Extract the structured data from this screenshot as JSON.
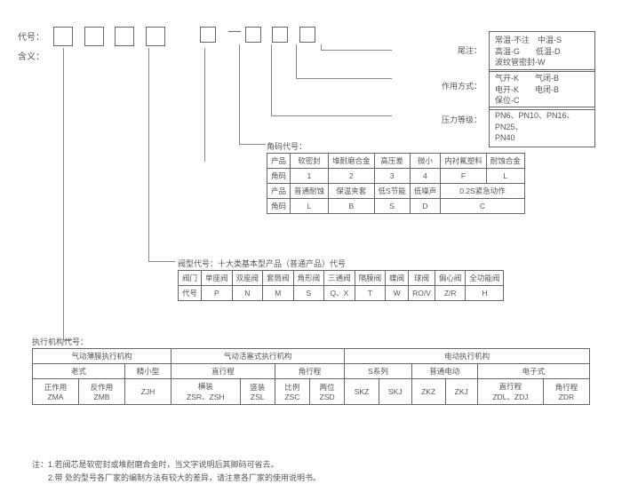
{
  "labels": {
    "code": "代号：",
    "meaning": "含义：",
    "suffix": "尾注：",
    "action_mode": "作用方式：",
    "pressure_grade": "压力等级：",
    "angle_code": "角码代号：",
    "valve_type": "阀型代号：十大类基本型产品（普通产品）代号",
    "actuator_code": "执行机构代号："
  },
  "suffix_box": [
    "常温-不注　中温-S",
    "高温-G　　低温-D",
    "波纹管密封-W"
  ],
  "action_box": [
    "气开-K　　气闭-B",
    "电开-K　　电闭-B",
    "保位-C"
  ],
  "pressure_box": [
    "PN6、PN10、PN16、PN25、",
    "PN40"
  ],
  "angle_table": {
    "r1": [
      "产品",
      "软密封",
      "堆耐磨合金",
      "高压差",
      "微小",
      "内衬氟塑料",
      "耐蚀合金"
    ],
    "r2": [
      "角码",
      "1",
      "2",
      "3",
      "4",
      "F",
      "L"
    ],
    "r3": [
      "产品",
      "普通耐蚀",
      "保温夹套",
      "低S节能",
      "低噪声",
      "0.2S紧急动作"
    ],
    "r4": [
      "角码",
      "L",
      "B",
      "S",
      "D",
      "C"
    ]
  },
  "valve_table": {
    "r1": [
      "阀门",
      "单座阀",
      "双座阀",
      "套筒阀",
      "角形阀",
      "三通阀",
      "隔膜阀",
      "蝶阀",
      "球阀",
      "偏心阀",
      "全功能阀"
    ],
    "r2": [
      "代号",
      "P",
      "N",
      "M",
      "S",
      "Q、X",
      "T",
      "W",
      "RO/V",
      "Z/R",
      "H"
    ]
  },
  "actuator_table": {
    "head1": [
      "气动薄膜执行机构",
      "气动活塞式执行机构",
      "电动执行机构"
    ],
    "head2": [
      "老式",
      "精小型",
      "直行程",
      "角行程",
      "S系列",
      "普通电动",
      "电子式"
    ],
    "r1": [
      "正作用\nZMA",
      "反作用\nZMB",
      "ZJH",
      "横装\nZSR、ZSH",
      "竖装\nZSL",
      "比例\nZSC",
      "两位\nZSD",
      "SKZ",
      "SKJ",
      "ZKZ",
      "ZKJ",
      "直行程\nZDL、ZDJ",
      "角行程\nZDR"
    ]
  },
  "notes": {
    "n1": "注：1.若阀芯是软密封或堆耐磨合金时，当文字说明后其脚码可省去。",
    "n2": "　　2.带 处的型号各厂家的编制方法有较大的差异，请注意各厂家的使用说明书。"
  }
}
